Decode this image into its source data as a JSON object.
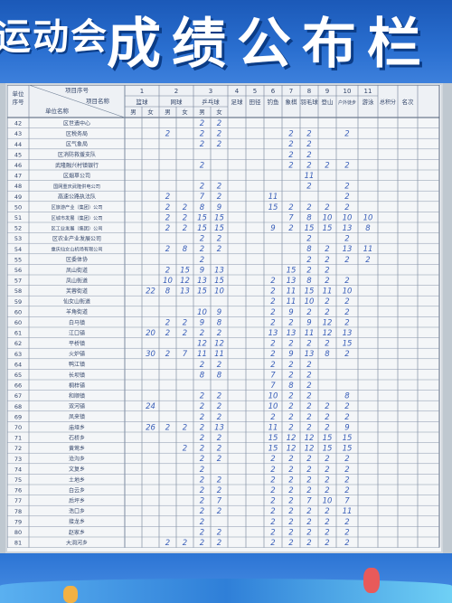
{
  "banner": {
    "left_text": "运动会",
    "title": "成绩公布栏"
  },
  "table": {
    "header": {
      "unit_label": "单位序号",
      "project_seq_label": "项目序号",
      "project_name_label": "项目名称",
      "unit_name_label": "单位名称",
      "nums": [
        "1",
        "2",
        "3",
        "4",
        "5",
        "6",
        "7",
        "8",
        "9",
        "10",
        "11"
      ],
      "sports": [
        "篮球",
        "网球",
        "乒乓球",
        "足球",
        "田径",
        "钓鱼",
        "象棋",
        "羽毛球",
        "登山",
        "户外徒步",
        "游泳"
      ],
      "sub": [
        "男",
        "女",
        "男",
        "女",
        "男",
        "女"
      ],
      "total": "总积分",
      "rank": "名次"
    },
    "rows": [
      {
        "no": "42",
        "name": "区世遗中心",
        "v": [
          "",
          "",
          "",
          "",
          "2",
          "2",
          "",
          "",
          "",
          "",
          "",
          "",
          "",
          "",
          "",
          ""
        ]
      },
      {
        "no": "43",
        "name": "区税务局",
        "v": [
          "",
          "",
          "2",
          "",
          "2",
          "2",
          "",
          "",
          "",
          "2",
          "2",
          "",
          "2",
          "",
          "",
          ""
        ]
      },
      {
        "no": "44",
        "name": "区气象局",
        "v": [
          "",
          "",
          "",
          "",
          "2",
          "2",
          "",
          "",
          "",
          "2",
          "2",
          "",
          "",
          "",
          "",
          ""
        ]
      },
      {
        "no": "45",
        "name": "区消防救援支队",
        "v": [
          "",
          "",
          "",
          "",
          "",
          "",
          "",
          "",
          "",
          "2",
          "2",
          "",
          "",
          "",
          "",
          ""
        ]
      },
      {
        "no": "46",
        "name": "武隆融兴村镇银行",
        "v": [
          "",
          "",
          "",
          "",
          "2",
          "",
          "",
          "",
          "",
          "2",
          "2",
          "2",
          "2",
          "",
          "",
          ""
        ]
      },
      {
        "no": "47",
        "name": "区烟草公司",
        "v": [
          "",
          "",
          "",
          "",
          "",
          "",
          "",
          "",
          "",
          "",
          "11",
          "",
          "",
          "",
          "",
          ""
        ]
      },
      {
        "no": "48",
        "name": "国网重庆武隆供电公司",
        "v": [
          "",
          "",
          "",
          "",
          "2",
          "2",
          "",
          "",
          "",
          "",
          "2",
          "",
          "2",
          "",
          "",
          ""
        ]
      },
      {
        "no": "49",
        "name": "高速公路执法队",
        "v": [
          "",
          "",
          "2",
          "",
          "7",
          "2",
          "",
          "",
          "11",
          "",
          "",
          "",
          "2",
          "",
          "",
          ""
        ]
      },
      {
        "no": "50",
        "name": "区旅游产业（集团）公司",
        "v": [
          "",
          "",
          "2",
          "2",
          "8",
          "9",
          "",
          "",
          "15",
          "2",
          "2",
          "2",
          "2",
          "",
          "",
          ""
        ]
      },
      {
        "no": "51",
        "name": "区城市发展（集团）公司",
        "v": [
          "",
          "",
          "2",
          "2",
          "15",
          "15",
          "",
          "",
          "",
          "7",
          "8",
          "10",
          "10",
          "10",
          "",
          ""
        ]
      },
      {
        "no": "52",
        "name": "区工业发展（集团）公司",
        "v": [
          "",
          "",
          "2",
          "2",
          "15",
          "15",
          "",
          "",
          "9",
          "2",
          "15",
          "15",
          "13",
          "8",
          "",
          ""
        ]
      },
      {
        "no": "53",
        "name": "区农业产业发展公司",
        "v": [
          "",
          "",
          "",
          "",
          "2",
          "2",
          "",
          "",
          "",
          "",
          "2",
          "",
          "2",
          "",
          "",
          ""
        ]
      },
      {
        "no": "54",
        "name": "重庆仙女山机场有限公司",
        "v": [
          "",
          "",
          "2",
          "8",
          "2",
          "2",
          "",
          "",
          "",
          "",
          "8",
          "2",
          "13",
          "11",
          "",
          ""
        ]
      },
      {
        "no": "55",
        "name": "区委体协",
        "v": [
          "",
          "",
          "",
          "",
          "2",
          "",
          "",
          "",
          "",
          "",
          "2",
          "2",
          "2",
          "2",
          "",
          ""
        ]
      },
      {
        "no": "56",
        "name": "凤山街道",
        "v": [
          "",
          "",
          "2",
          "15",
          "9",
          "13",
          "",
          "",
          "",
          "15",
          "2",
          "2",
          "",
          "",
          "",
          ""
        ]
      },
      {
        "no": "57",
        "name": "凤山街道",
        "v": [
          "",
          "",
          "10",
          "12",
          "13",
          "15",
          "",
          "",
          "2",
          "13",
          "8",
          "2",
          "2",
          "",
          "",
          ""
        ]
      },
      {
        "no": "58",
        "name": "芙蓉街道",
        "v": [
          "",
          "22",
          "8",
          "13",
          "15",
          "10",
          "",
          "",
          "2",
          "11",
          "15",
          "11",
          "10",
          "",
          "",
          ""
        ]
      },
      {
        "no": "59",
        "name": "仙女山街道",
        "v": [
          "",
          "",
          "",
          "",
          "",
          "",
          "",
          "",
          "2",
          "11",
          "10",
          "2",
          "2",
          "",
          "",
          ""
        ]
      },
      {
        "no": "60",
        "name": "羊角街道",
        "v": [
          "",
          "",
          "",
          "",
          "10",
          "9",
          "",
          "",
          "2",
          "9",
          "2",
          "2",
          "2",
          "",
          "",
          ""
        ]
      },
      {
        "no": "60",
        "name": "白马镇",
        "v": [
          "",
          "",
          "2",
          "2",
          "9",
          "8",
          "",
          "",
          "2",
          "2",
          "9",
          "12",
          "2",
          "",
          "",
          ""
        ]
      },
      {
        "no": "61",
        "name": "江口镇",
        "v": [
          "",
          "20",
          "2",
          "2",
          "2",
          "2",
          "",
          "",
          "13",
          "13",
          "11",
          "12",
          "13",
          "",
          "",
          ""
        ]
      },
      {
        "no": "62",
        "name": "平桥镇",
        "v": [
          "",
          "",
          "",
          "",
          "12",
          "12",
          "",
          "",
          "2",
          "2",
          "2",
          "2",
          "15",
          "",
          "",
          ""
        ]
      },
      {
        "no": "63",
        "name": "火炉镇",
        "v": [
          "",
          "30",
          "2",
          "7",
          "11",
          "11",
          "",
          "",
          "2",
          "9",
          "13",
          "8",
          "2",
          "",
          "",
          ""
        ]
      },
      {
        "no": "64",
        "name": "鸭江镇",
        "v": [
          "",
          "",
          "",
          "",
          "2",
          "2",
          "",
          "",
          "2",
          "2",
          "2",
          "",
          "",
          "",
          "",
          ""
        ]
      },
      {
        "no": "65",
        "name": "长坝镇",
        "v": [
          "",
          "",
          "",
          "",
          "8",
          "8",
          "",
          "",
          "7",
          "2",
          "2",
          "",
          "",
          "",
          "",
          ""
        ]
      },
      {
        "no": "66",
        "name": "桐梓镇",
        "v": [
          "",
          "",
          "",
          "",
          "",
          "",
          "",
          "",
          "7",
          "8",
          "2",
          "",
          "",
          "",
          "",
          ""
        ]
      },
      {
        "no": "67",
        "name": "和顺镇",
        "v": [
          "",
          "",
          "",
          "",
          "2",
          "2",
          "",
          "",
          "10",
          "2",
          "2",
          "",
          "8",
          "",
          "",
          ""
        ]
      },
      {
        "no": "68",
        "name": "双河镇",
        "v": [
          "",
          "24",
          "",
          "",
          "2",
          "2",
          "",
          "",
          "10",
          "2",
          "2",
          "2",
          "2",
          "",
          "",
          ""
        ]
      },
      {
        "no": "69",
        "name": "凤来镇",
        "v": [
          "",
          "",
          "",
          "",
          "2",
          "2",
          "",
          "",
          "2",
          "2",
          "2",
          "2",
          "2",
          "",
          "",
          ""
        ]
      },
      {
        "no": "70",
        "name": "庙垭乡",
        "v": [
          "",
          "26",
          "2",
          "2",
          "2",
          "13",
          "",
          "",
          "11",
          "2",
          "2",
          "2",
          "9",
          "",
          "",
          ""
        ]
      },
      {
        "no": "71",
        "name": "石桥乡",
        "v": [
          "",
          "",
          "",
          "",
          "2",
          "2",
          "",
          "",
          "15",
          "12",
          "12",
          "15",
          "15",
          "",
          "",
          ""
        ]
      },
      {
        "no": "72",
        "name": "黄莺乡",
        "v": [
          "",
          "",
          "",
          "2",
          "2",
          "2",
          "",
          "",
          "15",
          "12",
          "12",
          "15",
          "15",
          "",
          "",
          ""
        ]
      },
      {
        "no": "73",
        "name": "沧沟乡",
        "v": [
          "",
          "",
          "",
          "",
          "2",
          "2",
          "",
          "",
          "2",
          "2",
          "2",
          "2",
          "2",
          "",
          "",
          ""
        ]
      },
      {
        "no": "74",
        "name": "文复乡",
        "v": [
          "",
          "",
          "",
          "",
          "2",
          "",
          "",
          "",
          "2",
          "2",
          "2",
          "2",
          "2",
          "",
          "",
          ""
        ]
      },
      {
        "no": "75",
        "name": "土地乡",
        "v": [
          "",
          "",
          "",
          "",
          "2",
          "2",
          "",
          "",
          "2",
          "2",
          "2",
          "2",
          "2",
          "",
          "",
          ""
        ]
      },
      {
        "no": "76",
        "name": "白云乡",
        "v": [
          "",
          "",
          "",
          "",
          "2",
          "2",
          "",
          "",
          "2",
          "2",
          "2",
          "2",
          "2",
          "",
          "",
          ""
        ]
      },
      {
        "no": "77",
        "name": "后坪乡",
        "v": [
          "",
          "",
          "",
          "",
          "2",
          "7",
          "",
          "",
          "2",
          "2",
          "7",
          "10",
          "7",
          "",
          "",
          ""
        ]
      },
      {
        "no": "78",
        "name": "浩口乡",
        "v": [
          "",
          "",
          "",
          "",
          "2",
          "2",
          "",
          "",
          "2",
          "2",
          "2",
          "2",
          "11",
          "",
          "",
          ""
        ]
      },
      {
        "no": "79",
        "name": "接龙乡",
        "v": [
          "",
          "",
          "",
          "",
          "2",
          "",
          "",
          "",
          "2",
          "2",
          "2",
          "2",
          "2",
          "",
          "",
          ""
        ]
      },
      {
        "no": "80",
        "name": "赵家乡",
        "v": [
          "",
          "",
          "",
          "",
          "2",
          "2",
          "",
          "",
          "2",
          "2",
          "2",
          "2",
          "2",
          "",
          "",
          ""
        ]
      },
      {
        "no": "81",
        "name": "大洞河乡",
        "v": [
          "",
          "",
          "2",
          "2",
          "2",
          "2",
          "",
          "",
          "2",
          "2",
          "2",
          "2",
          "2",
          "",
          "",
          ""
        ]
      }
    ]
  }
}
